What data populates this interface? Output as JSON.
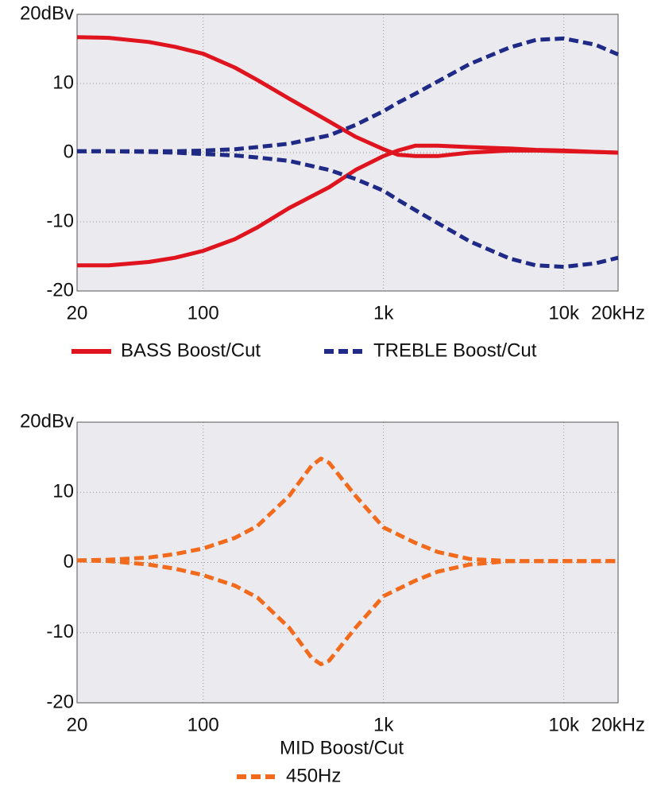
{
  "chart_data": [
    {
      "type": "line",
      "log_x": true,
      "grid": true,
      "legend": "bottom",
      "xlim": [
        20,
        20000
      ],
      "xticks": [
        20,
        100,
        {
          "value": 1000,
          "label": "1k"
        },
        {
          "value": 10000,
          "label": "10k"
        },
        {
          "value": 20000,
          "label": "20kHz"
        }
      ],
      "ylim": [
        -20,
        20
      ],
      "yticks": [
        {
          "value": 20,
          "label": "20dBv"
        },
        10,
        0,
        -10,
        -20
      ],
      "x": [
        20,
        30,
        50,
        70,
        100,
        150,
        200,
        300,
        500,
        700,
        1000,
        1200,
        1500,
        2000,
        3000,
        5000,
        7000,
        10000,
        15000,
        20000
      ],
      "series": [
        {
          "name": "BASS Boost/Cut",
          "color": "#e0141e",
          "dashed": false,
          "values": [
            16.7,
            16.6,
            16.0,
            15.3,
            14.3,
            12.3,
            10.5,
            7.8,
            4.5,
            2.3,
            0.5,
            -0.3,
            -0.5,
            -0.5,
            0,
            0.3,
            0.3,
            0.2,
            0.1,
            0
          ]
        },
        {
          "color": "#e0141e",
          "dashed": false,
          "values": [
            -16.3,
            -16.3,
            -15.8,
            -15.2,
            -14.2,
            -12.5,
            -10.8,
            -8.0,
            -5.0,
            -2.5,
            -0.5,
            0.3,
            1.0,
            1.0,
            0.8,
            0.6,
            0.4,
            0.3,
            0.1,
            0
          ]
        },
        {
          "name": "TREBLE Boost/Cut",
          "color": "#1f2a86",
          "dashed": true,
          "values": [
            0.2,
            0.2,
            0.2,
            0.2,
            0.3,
            0.5,
            0.8,
            1.3,
            2.5,
            4.0,
            6.0,
            7.2,
            8.5,
            10.3,
            12.8,
            15.2,
            16.3,
            16.5,
            15.6,
            14.2
          ]
        },
        {
          "color": "#1f2a86",
          "dashed": true,
          "values": [
            0.2,
            0.2,
            0.1,
            0,
            -0.2,
            -0.4,
            -0.7,
            -1.2,
            -2.5,
            -3.8,
            -5.5,
            -6.8,
            -8.3,
            -10.2,
            -12.8,
            -15.3,
            -16.3,
            -16.5,
            -16.0,
            -15.2
          ]
        }
      ]
    },
    {
      "type": "line",
      "log_x": true,
      "grid": true,
      "legend": "bottom",
      "xlabel": "MID Boost/Cut",
      "xlim": [
        20,
        20000
      ],
      "xticks": [
        20,
        100,
        {
          "value": 1000,
          "label": "1k"
        },
        {
          "value": 10000,
          "label": "10k"
        },
        {
          "value": 20000,
          "label": "20kHz"
        }
      ],
      "ylim": [
        -20,
        20
      ],
      "yticks": [
        {
          "value": 20,
          "label": "20dBv"
        },
        10,
        0,
        -10,
        -20
      ],
      "x": [
        20,
        30,
        50,
        70,
        100,
        150,
        200,
        300,
        400,
        450,
        500,
        700,
        1000,
        1500,
        2000,
        3000,
        5000,
        10000,
        20000
      ],
      "series": [
        {
          "name": "450Hz",
          "color": "#f26b1d",
          "dashed": true,
          "values": [
            0.3,
            0.4,
            0.7,
            1.2,
            2.0,
            3.5,
            5.2,
            9.5,
            13.8,
            14.8,
            14.2,
            9.5,
            5.0,
            2.8,
            1.5,
            0.5,
            0.2,
            0.2,
            0.2
          ]
        },
        {
          "color": "#f26b1d",
          "dashed": true,
          "values": [
            0.3,
            0.2,
            -0.3,
            -0.9,
            -1.8,
            -3.3,
            -5.0,
            -9.3,
            -13.6,
            -14.5,
            -14.0,
            -9.3,
            -4.8,
            -2.6,
            -1.3,
            -0.3,
            0.2,
            0.2,
            0.2
          ]
        }
      ]
    }
  ]
}
